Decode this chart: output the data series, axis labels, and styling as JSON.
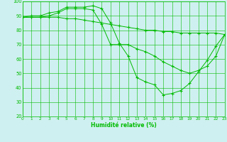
{
  "xlabel": "Humidité relative (%)",
  "bg_color": "#cff0f0",
  "grid_color": "#00bb00",
  "line_color": "#00bb00",
  "xlim": [
    0,
    23
  ],
  "ylim": [
    20,
    100
  ],
  "xticks": [
    0,
    1,
    2,
    3,
    4,
    5,
    6,
    7,
    8,
    9,
    10,
    11,
    12,
    13,
    14,
    15,
    16,
    17,
    18,
    19,
    20,
    21,
    22,
    23
  ],
  "yticks": [
    20,
    30,
    40,
    50,
    60,
    70,
    80,
    90,
    100
  ],
  "curve1_x": [
    0,
    1,
    2,
    3,
    4,
    5,
    6,
    7,
    8,
    9,
    10,
    11,
    12,
    13,
    14,
    15,
    16,
    17,
    18,
    19,
    20,
    21,
    22,
    23
  ],
  "curve1_y": [
    89,
    90,
    90,
    92,
    93,
    96,
    96,
    96,
    97,
    95,
    85,
    71,
    62,
    47,
    44,
    42,
    35,
    36,
    38,
    43,
    51,
    59,
    69,
    77
  ],
  "curve2_x": [
    0,
    1,
    2,
    3,
    4,
    5,
    6,
    7,
    8,
    9,
    10,
    11,
    12,
    13,
    14,
    15,
    16,
    17,
    18,
    19,
    20,
    21,
    22,
    23
  ],
  "curve2_y": [
    89,
    89,
    89,
    90,
    92,
    95,
    95,
    95,
    94,
    84,
    70,
    70,
    70,
    67,
    65,
    62,
    58,
    55,
    52,
    50,
    52,
    55,
    62,
    77
  ],
  "curve3_x": [
    0,
    1,
    2,
    3,
    4,
    5,
    6,
    7,
    8,
    9,
    10,
    11,
    12,
    13,
    14,
    15,
    16,
    17,
    18,
    19,
    20,
    21,
    22,
    23
  ],
  "curve3_y": [
    89,
    89,
    89,
    89,
    89,
    88,
    88,
    87,
    86,
    85,
    84,
    83,
    82,
    81,
    80,
    80,
    79,
    79,
    78,
    78,
    78,
    78,
    78,
    77
  ]
}
